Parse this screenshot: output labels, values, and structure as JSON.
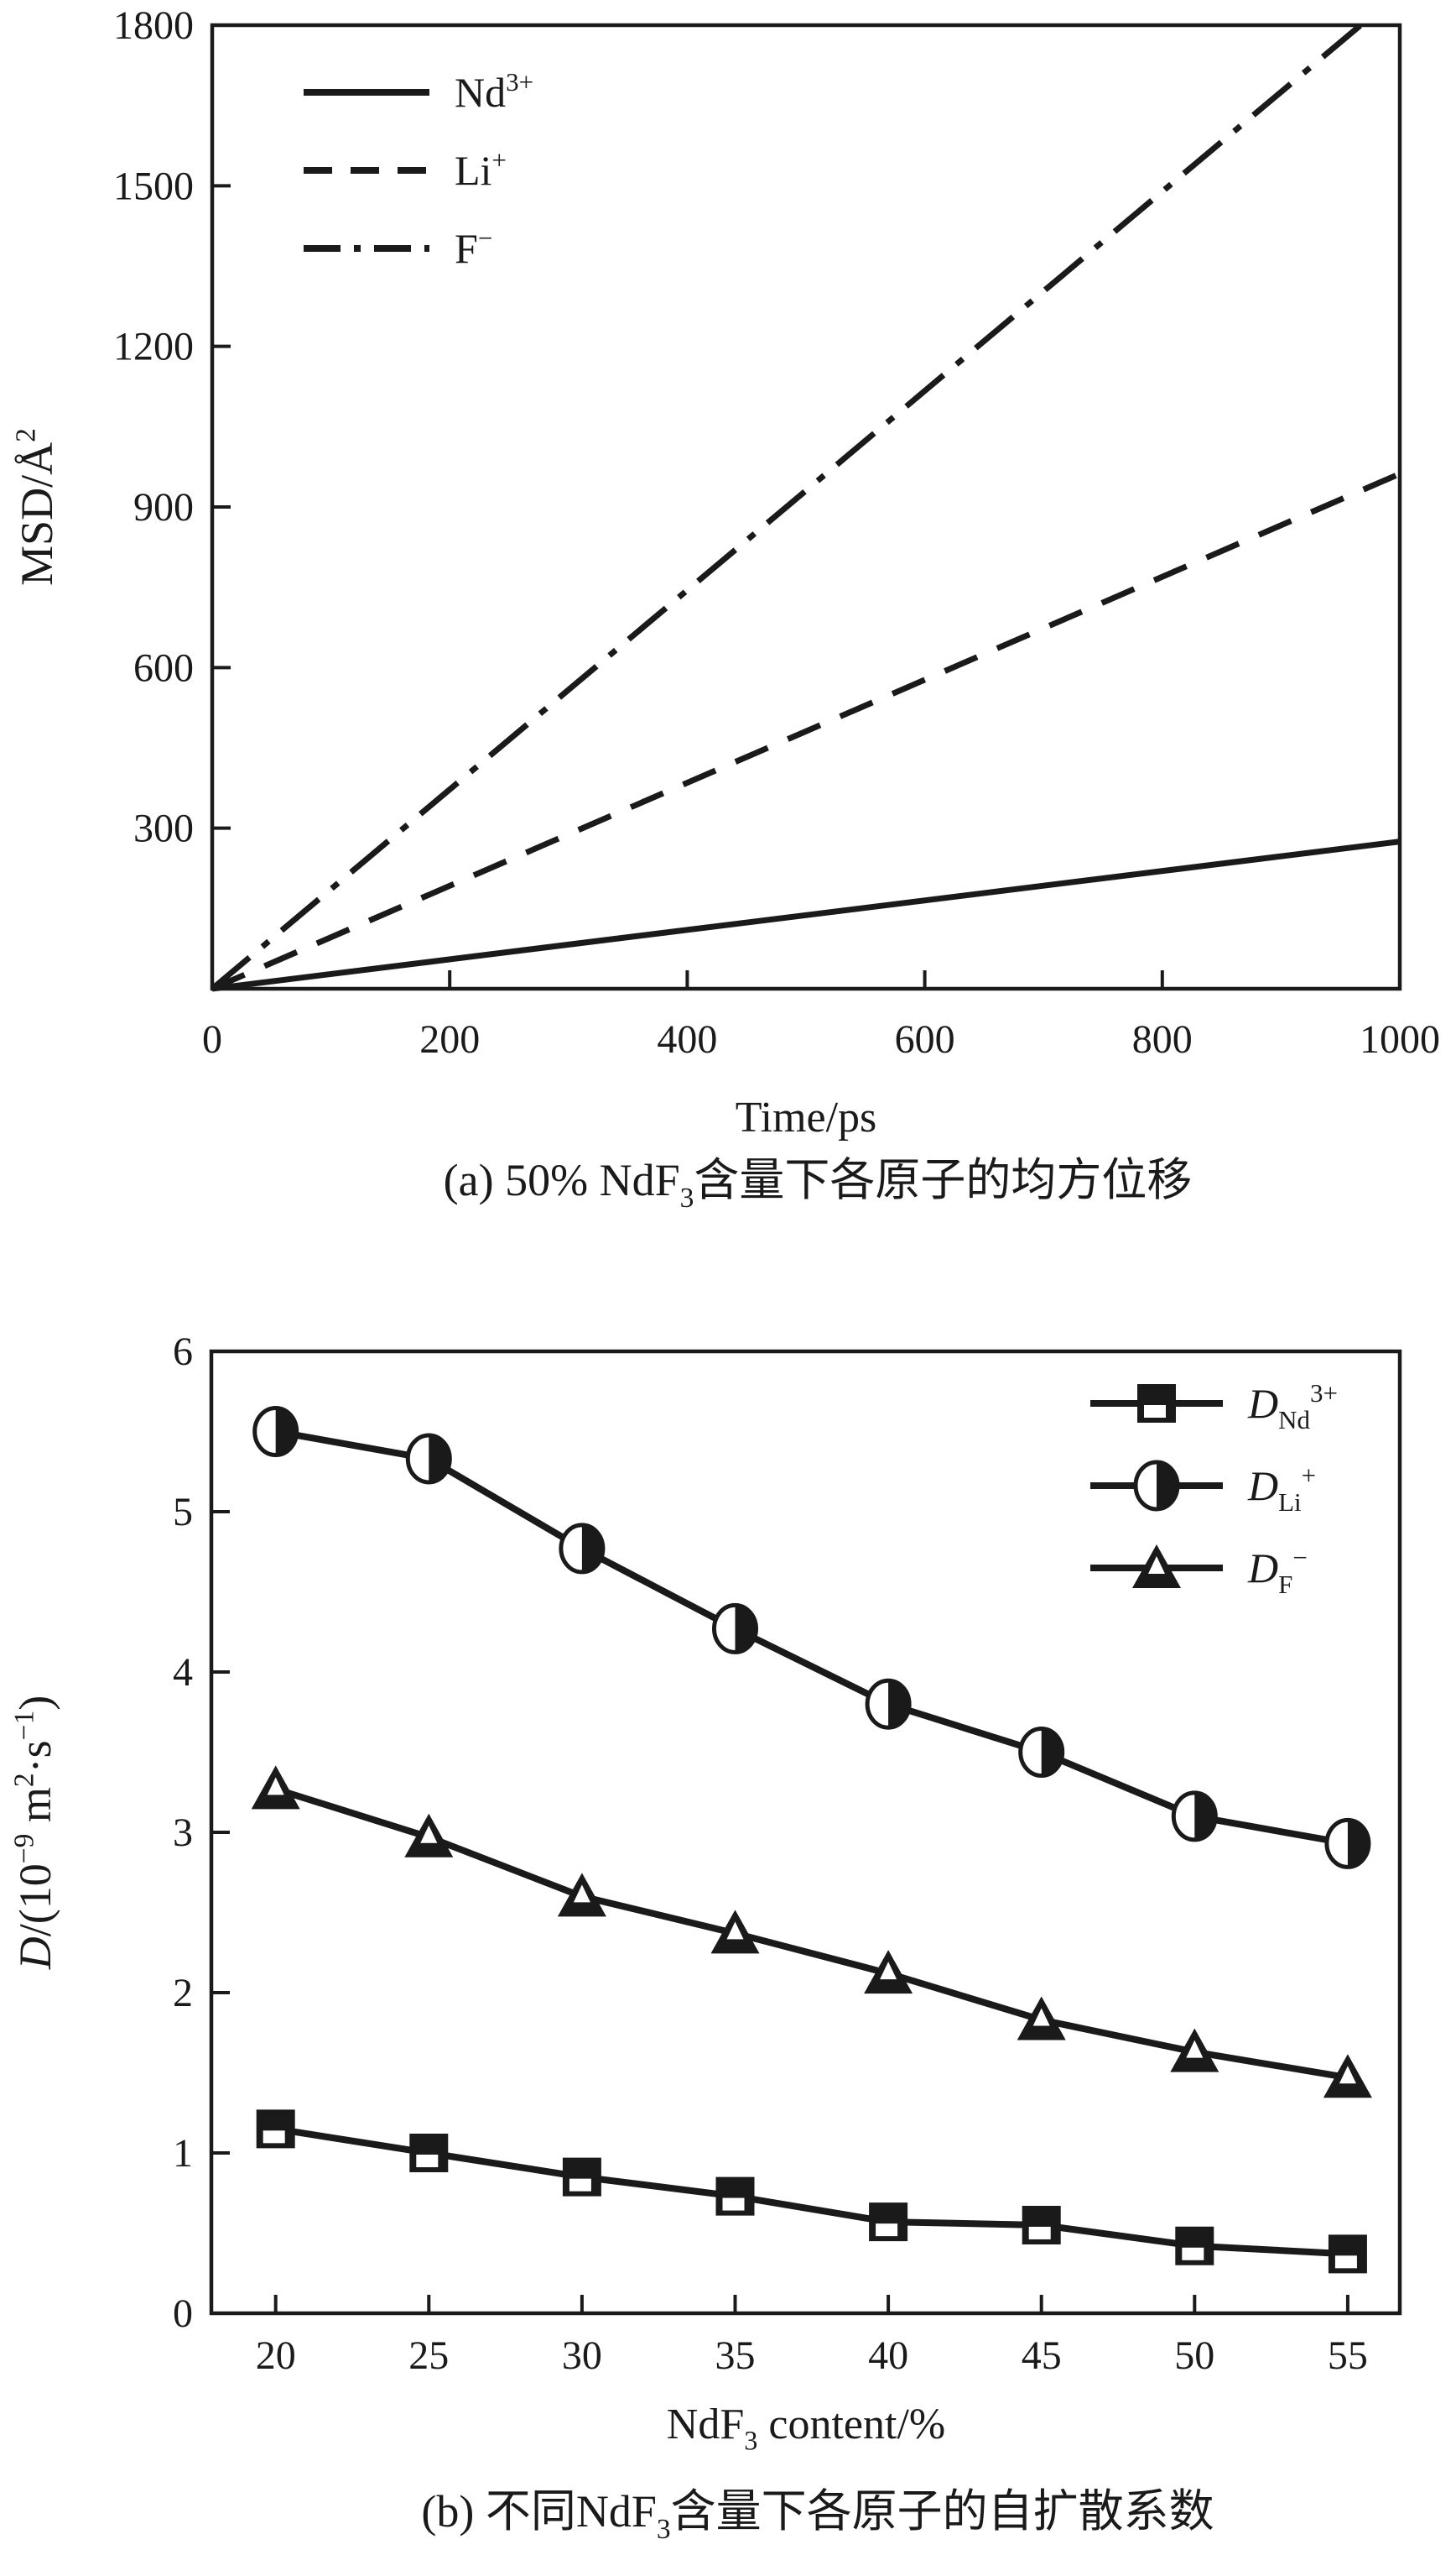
{
  "page": {
    "background": "#ffffff",
    "ink": "#1a1a1a"
  },
  "chart_data": [
    {
      "type": "line",
      "panel": "a",
      "title": "(a) 50% NdF3含量下各原子的均方位移",
      "xlabel": "Time/ps",
      "ylabel": "MSD/Å2",
      "xlim": [
        0,
        1000
      ],
      "ylim": [
        0,
        1800
      ],
      "xticks": [
        0,
        200,
        400,
        600,
        800,
        1000
      ],
      "yticks": [
        300,
        600,
        900,
        1200,
        1500,
        1800
      ],
      "grid": false,
      "legend_position": "upper-left-inside",
      "series": [
        {
          "name": "Nd3+",
          "style": "solid",
          "x": [
            0,
            1000
          ],
          "y": [
            0,
            275
          ]
        },
        {
          "name": "Li+",
          "style": "dashed",
          "x": [
            0,
            1000
          ],
          "y": [
            0,
            962
          ]
        },
        {
          "name": "F−",
          "style": "dashdot",
          "x": [
            0,
            967
          ],
          "y": [
            0,
            1800
          ]
        }
      ]
    },
    {
      "type": "line",
      "panel": "b",
      "title": "(b) 不同NdF3含量下各原子的自扩散系数",
      "xlabel": "NdF3 content/%",
      "ylabel": "D/(10−9 m2·s−1)",
      "xlim": [
        17.9,
        56.7
      ],
      "ylim": [
        0,
        6
      ],
      "xticks": [
        20,
        25,
        30,
        35,
        40,
        45,
        50,
        55
      ],
      "yticks": [
        0,
        1,
        2,
        3,
        4,
        5,
        6
      ],
      "grid": false,
      "legend_position": "upper-right-inside",
      "x": [
        20,
        25,
        30,
        35,
        40,
        45,
        50,
        55
      ],
      "series": [
        {
          "name": "DNd3+",
          "marker": "half-square",
          "values": [
            1.15,
            1.0,
            0.85,
            0.73,
            0.57,
            0.55,
            0.42,
            0.37
          ]
        },
        {
          "name": "DLi+",
          "marker": "half-circle",
          "values": [
            5.5,
            5.33,
            4.77,
            4.27,
            3.8,
            3.5,
            3.1,
            2.93
          ]
        },
        {
          "name": "DF−",
          "marker": "half-triangle",
          "values": [
            3.27,
            2.97,
            2.6,
            2.37,
            2.12,
            1.83,
            1.63,
            1.47
          ]
        }
      ]
    }
  ],
  "text": {
    "a": {
      "yticks": [
        "300",
        "600",
        "900",
        "1200",
        "1500",
        "1800"
      ],
      "xticks": [
        "0",
        "200",
        "400",
        "600",
        "800",
        "1000"
      ],
      "xlabel": "Time/ps",
      "ylabel": {
        "pre": "MSD/Å",
        "sup": "2"
      },
      "legend": [
        {
          "pre": "Nd",
          "sup": "3+"
        },
        {
          "pre": "Li",
          "sup": "+"
        },
        {
          "pre": "F",
          "sup": "−"
        }
      ],
      "caption": {
        "pre": "(a) 50% NdF",
        "sub": "3",
        "post": "含量下各原子的均方位移"
      }
    },
    "b": {
      "yticks": [
        "0",
        "1",
        "2",
        "3",
        "4",
        "5",
        "6"
      ],
      "xticks": [
        "20",
        "25",
        "30",
        "35",
        "40",
        "45",
        "50",
        "55"
      ],
      "xlabel": {
        "pre": "NdF",
        "sub": "3",
        "post": " content/%"
      },
      "ylabel": {
        "d": "D",
        "p1": "/(10",
        "e1": "−9",
        "p2": " m",
        "e2": "2",
        "p3": "·s",
        "e3": "−1",
        "p4": ")"
      },
      "legend": [
        {
          "d": "D",
          "sub": "Nd",
          "sup": "3+"
        },
        {
          "d": "D",
          "sub": "Li",
          "sup": "+"
        },
        {
          "d": "D",
          "sub": "F",
          "sup": "−"
        }
      ],
      "caption": {
        "pre": "(b) 不同NdF",
        "sub": "3",
        "post": "含量下各原子的自扩散系数"
      }
    }
  }
}
